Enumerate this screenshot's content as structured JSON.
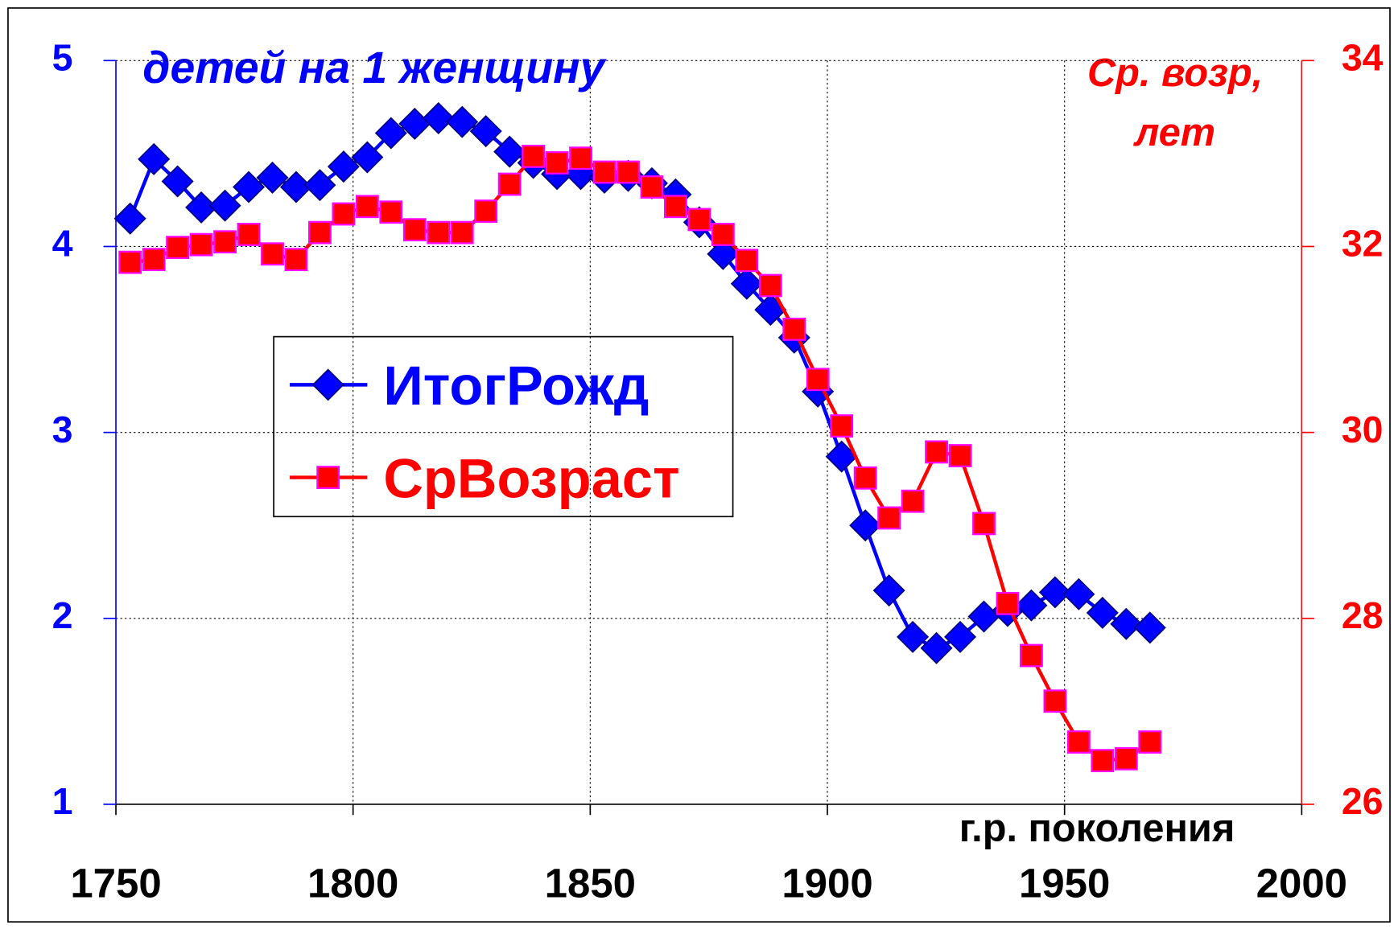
{
  "chart_data": {
    "type": "line",
    "title": "детей на 1 женщину",
    "y2label": [
      "Ср. возр,",
      "лет"
    ],
    "xlabel": "г.р. поколения",
    "x": [
      1753,
      1758,
      1763,
      1768,
      1773,
      1778,
      1783,
      1788,
      1793,
      1798,
      1803,
      1808,
      1813,
      1818,
      1823,
      1828,
      1833,
      1838,
      1843,
      1848,
      1853,
      1858,
      1863,
      1868,
      1873,
      1878,
      1883,
      1888,
      1893,
      1898,
      1903,
      1908,
      1913,
      1918,
      1923,
      1928,
      1933,
      1938,
      1943,
      1948,
      1953,
      1958,
      1963,
      1968
    ],
    "series": [
      {
        "name": "ИтогРожд",
        "color": "#0000ff",
        "marker": "diamond",
        "values": [
          4.15,
          4.47,
          4.35,
          4.21,
          4.22,
          4.32,
          4.37,
          4.32,
          4.33,
          4.43,
          4.48,
          4.61,
          4.66,
          4.69,
          4.67,
          4.62,
          4.51,
          4.45,
          4.39,
          4.39,
          4.37,
          4.38,
          4.34,
          4.28,
          4.13,
          3.96,
          3.8,
          3.66,
          3.51,
          3.22,
          2.87,
          2.5,
          2.15,
          1.9,
          1.84,
          1.9,
          2.01,
          2.04,
          2.07,
          2.14,
          2.13,
          2.03,
          1.97,
          1.95
        ]
      },
      {
        "name": "СрВозраст",
        "color": "#ff0000",
        "marker": "square",
        "axis": "y2",
        "values": [
          31.83,
          31.86,
          31.99,
          32.02,
          32.05,
          32.13,
          31.92,
          31.86,
          32.15,
          32.35,
          32.43,
          32.37,
          32.18,
          32.15,
          32.15,
          32.38,
          32.67,
          32.97,
          32.9,
          32.95,
          32.8,
          32.8,
          32.64,
          32.43,
          32.29,
          32.13,
          31.85,
          31.58,
          31.11,
          30.57,
          30.07,
          29.51,
          29.08,
          29.26,
          29.79,
          29.75,
          29.02,
          28.16,
          27.6,
          27.11,
          26.67,
          26.47,
          26.49,
          26.67
        ]
      }
    ],
    "xlim": [
      1750,
      2000
    ],
    "xticks": [
      1750,
      1800,
      1850,
      1900,
      1950,
      2000
    ],
    "ylim": [
      1,
      5
    ],
    "yticks": [
      1,
      2,
      3,
      4,
      5
    ],
    "y2lim": [
      26,
      34
    ],
    "y2ticks": [
      26,
      28,
      30,
      32,
      34
    ],
    "grid": true
  }
}
